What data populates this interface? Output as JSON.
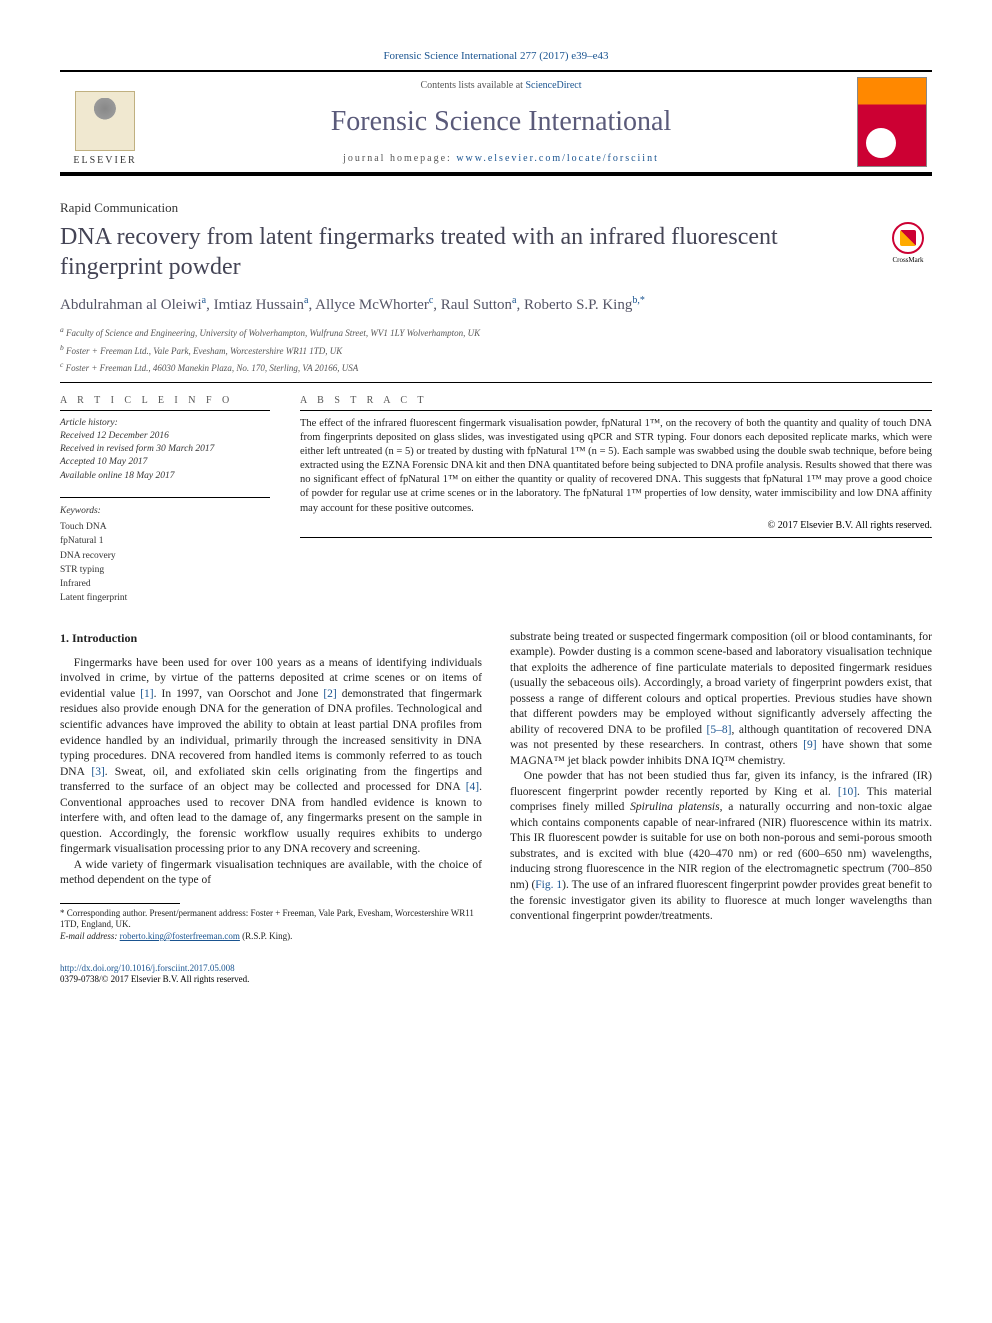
{
  "journal_ref": "Forensic Science International 277 (2017) e39–e43",
  "header": {
    "contents_prefix": "Contents lists available at ",
    "contents_link": "ScienceDirect",
    "journal_title": "Forensic Science International",
    "homepage_prefix": "journal homepage: ",
    "homepage_link": "www.elsevier.com/locate/forsciint",
    "publisher_name": "ELSEVIER"
  },
  "article_type": "Rapid Communication",
  "title": "DNA recovery from latent fingermarks treated with an infrared fluorescent fingerprint powder",
  "crossmark_label": "CrossMark",
  "authors_html": "Abdulrahman al Oleiwi<sup>a</sup>, Imtiaz Hussain<sup>a</sup>, Allyce McWhorter<sup>c</sup>, Raul Sutton<sup>a</sup>, Roberto S.P. King<sup>b,*</sup>",
  "affiliations": [
    "a Faculty of Science and Engineering, University of Wolverhampton, Wulfruna Street, WV1 1LY Wolverhampton, UK",
    "b Foster + Freeman Ltd., Vale Park, Evesham, Worcestershire WR11 1TD, UK",
    "c Foster + Freeman Ltd., 46030 Manekin Plaza, No. 170, Sterling, VA 20166, USA"
  ],
  "info": {
    "section_label": "A R T I C L E  I N F O",
    "history_label": "Article history:",
    "history": [
      "Received 12 December 2016",
      "Received in revised form 30 March 2017",
      "Accepted 10 May 2017",
      "Available online 18 May 2017"
    ],
    "keywords_label": "Keywords:",
    "keywords": [
      "Touch DNA",
      "fpNatural 1",
      "DNA recovery",
      "STR typing",
      "Infrared",
      "Latent fingerprint"
    ]
  },
  "abstract": {
    "section_label": "A B S T R A C T",
    "text": "The effect of the infrared fluorescent fingermark visualisation powder, fpNatural 1™, on the recovery of both the quantity and quality of touch DNA from fingerprints deposited on glass slides, was investigated using qPCR and STR typing. Four donors each deposited replicate marks, which were either left untreated (n = 5) or treated by dusting with fpNatural 1™ (n = 5). Each sample was swabbed using the double swab technique, before being extracted using the EZNA Forensic DNA kit and then DNA quantitated before being subjected to DNA profile analysis. Results showed that there was no significant effect of fpNatural 1™ on either the quantity or quality of recovered DNA. This suggests that fpNatural 1™ may prove a good choice of powder for regular use at crime scenes or in the laboratory. The fpNatural 1™ properties of low density, water immiscibility and low DNA affinity may account for these positive outcomes.",
    "copyright": "© 2017 Elsevier B.V. All rights reserved."
  },
  "body": {
    "intro_heading": "1. Introduction",
    "p1": "Fingermarks have been used for over 100 years as a means of identifying individuals involved in crime, by virtue of the patterns deposited at crime scenes or on items of evidential value [1]. In 1997, van Oorschot and Jone [2] demonstrated that fingermark residues also provide enough DNA for the generation of DNA profiles. Technological and scientific advances have improved the ability to obtain at least partial DNA profiles from evidence handled by an individual, primarily through the increased sensitivity in DNA typing procedures. DNA recovered from handled items is commonly referred to as touch DNA [3]. Sweat, oil, and exfoliated skin cells originating from the fingertips and transferred to the surface of an object may be collected and processed for DNA [4]. Conventional approaches used to recover DNA from handled evidence is known to interfere with, and often lead to the damage of, any fingermarks present on the sample in question. Accordingly, the forensic workflow usually requires exhibits to undergo fingermark visualisation processing prior to any DNA recovery and screening.",
    "p2": "A wide variety of fingermark visualisation techniques are available, with the choice of method dependent on the type of",
    "p3": "substrate being treated or suspected fingermark composition (oil or blood contaminants, for example). Powder dusting is a common scene-based and laboratory visualisation technique that exploits the adherence of fine particulate materials to deposited fingermark residues (usually the sebaceous oils). Accordingly, a broad variety of fingerprint powders exist, that possess a range of different colours and optical properties. Previous studies have shown that different powders may be employed without significantly adversely affecting the ability of recovered DNA to be profiled [5–8], although quantitation of recovered DNA was not presented by these researchers. In contrast, others [9] have shown that some MAGNA™ jet black powder inhibits DNA IQ™ chemistry.",
    "p4": "One powder that has not been studied thus far, given its infancy, is the infrared (IR) fluorescent fingerprint powder recently reported by King et al. [10]. This material comprises finely milled Spirulina platensis, a naturally occurring and non-toxic algae which contains components capable of near-infrared (NIR) fluorescence within its matrix. This IR fluorescent powder is suitable for use on both non-porous and semi-porous smooth substrates, and is excited with blue (420–470 nm) or red (600–650 nm) wavelengths, inducing strong fluorescence in the NIR region of the electromagnetic spectrum (700–850 nm) (Fig. 1). The use of an infrared fluorescent fingerprint powder provides great benefit to the forensic investigator given its ability to fluoresce at much longer wavelengths than conventional fingerprint powder/treatments."
  },
  "footnote": {
    "corr": "* Corresponding author. Present/permanent address: Foster + Freeman, Vale Park, Evesham, Worcestershire WR11 1TD, England, UK.",
    "email_label": "E-mail address: ",
    "email": "roberto.king@fosterfreeman.com",
    "email_suffix": " (R.S.P. King)."
  },
  "footer": {
    "doi": "http://dx.doi.org/10.1016/j.forsciint.2017.05.008",
    "issn_copyright": "0379-0738/© 2017 Elsevier B.V. All rights reserved."
  },
  "colors": {
    "link": "#1a5490",
    "title_grey": "#555566",
    "journal_title": "#5a5a7a"
  }
}
